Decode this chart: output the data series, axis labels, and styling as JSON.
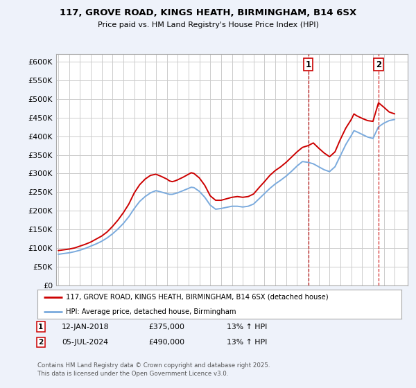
{
  "title": "117, GROVE ROAD, KINGS HEATH, BIRMINGHAM, B14 6SX",
  "subtitle": "Price paid vs. HM Land Registry's House Price Index (HPI)",
  "ylim": [
    0,
    620000
  ],
  "yticks": [
    0,
    50000,
    100000,
    150000,
    200000,
    250000,
    300000,
    350000,
    400000,
    450000,
    500000,
    550000,
    600000
  ],
  "xlim_start": 1994.8,
  "xlim_end": 2027.2,
  "grid_color": "#cccccc",
  "background_color": "#eef2fa",
  "plot_bg": "#ffffff",
  "red_line_color": "#cc0000",
  "blue_line_color": "#7aaadd",
  "marker1_x": 2018.04,
  "marker2_x": 2024.51,
  "legend_line1": "117, GROVE ROAD, KINGS HEATH, BIRMINGHAM, B14 6SX (detached house)",
  "legend_line2": "HPI: Average price, detached house, Birmingham",
  "footer": "Contains HM Land Registry data © Crown copyright and database right 2025.\nThis data is licensed under the Open Government Licence v3.0.",
  "red_x": [
    1995.0,
    1995.25,
    1995.5,
    1995.75,
    1996.0,
    1996.5,
    1997.0,
    1997.5,
    1998.0,
    1998.5,
    1999.0,
    1999.5,
    2000.0,
    2000.5,
    2001.0,
    2001.5,
    2002.0,
    2002.5,
    2003.0,
    2003.5,
    2004.0,
    2004.5,
    2005.0,
    2005.25,
    2005.5,
    2005.75,
    2006.0,
    2006.5,
    2007.0,
    2007.25,
    2007.5,
    2008.0,
    2008.5,
    2009.0,
    2009.5,
    2010.0,
    2010.5,
    2011.0,
    2011.5,
    2012.0,
    2012.5,
    2013.0,
    2013.5,
    2014.0,
    2014.5,
    2015.0,
    2015.5,
    2016.0,
    2016.5,
    2017.0,
    2017.5,
    2018.04,
    2018.5,
    2019.0,
    2019.5,
    2020.0,
    2020.5,
    2021.0,
    2021.5,
    2022.0,
    2022.25,
    2022.5,
    2023.0,
    2023.5,
    2024.0,
    2024.51,
    2025.0,
    2025.5,
    2026.0
  ],
  "red_y": [
    93000,
    94000,
    95000,
    96000,
    97000,
    100000,
    105000,
    110000,
    116000,
    124000,
    132000,
    143000,
    158000,
    175000,
    195000,
    218000,
    248000,
    270000,
    285000,
    295000,
    298000,
    292000,
    285000,
    280000,
    278000,
    280000,
    283000,
    290000,
    298000,
    302000,
    300000,
    288000,
    268000,
    240000,
    228000,
    228000,
    232000,
    236000,
    238000,
    236000,
    238000,
    245000,
    262000,
    278000,
    295000,
    308000,
    318000,
    330000,
    344000,
    358000,
    370000,
    375000,
    382000,
    368000,
    355000,
    345000,
    358000,
    392000,
    422000,
    445000,
    460000,
    455000,
    448000,
    442000,
    440000,
    490000,
    478000,
    465000,
    460000
  ],
  "blue_x": [
    1995.0,
    1995.25,
    1995.5,
    1995.75,
    1996.0,
    1996.5,
    1997.0,
    1997.5,
    1998.0,
    1998.5,
    1999.0,
    1999.5,
    2000.0,
    2000.5,
    2001.0,
    2001.5,
    2002.0,
    2002.5,
    2003.0,
    2003.5,
    2004.0,
    2004.5,
    2005.0,
    2005.25,
    2005.5,
    2005.75,
    2006.0,
    2006.5,
    2007.0,
    2007.25,
    2007.5,
    2008.0,
    2008.5,
    2009.0,
    2009.5,
    2010.0,
    2010.5,
    2011.0,
    2011.5,
    2012.0,
    2012.5,
    2013.0,
    2013.5,
    2014.0,
    2014.5,
    2015.0,
    2015.5,
    2016.0,
    2016.5,
    2017.0,
    2017.5,
    2018.0,
    2018.5,
    2019.0,
    2019.5,
    2020.0,
    2020.5,
    2021.0,
    2021.5,
    2022.0,
    2022.25,
    2022.5,
    2023.0,
    2023.5,
    2024.0,
    2024.5,
    2025.0,
    2025.5,
    2026.0
  ],
  "blue_y": [
    83000,
    84000,
    85000,
    86000,
    87000,
    90000,
    94000,
    99000,
    105000,
    111000,
    118000,
    127000,
    138000,
    151000,
    166000,
    184000,
    206000,
    225000,
    238000,
    248000,
    254000,
    250000,
    246000,
    244000,
    244000,
    246000,
    248000,
    254000,
    260000,
    263000,
    262000,
    252000,
    236000,
    215000,
    204000,
    206000,
    209000,
    212000,
    212000,
    210000,
    212000,
    218000,
    232000,
    246000,
    260000,
    272000,
    282000,
    293000,
    306000,
    320000,
    332000,
    330000,
    326000,
    318000,
    310000,
    305000,
    318000,
    348000,
    378000,
    402000,
    415000,
    412000,
    405000,
    398000,
    394000,
    425000,
    435000,
    442000,
    445000
  ]
}
